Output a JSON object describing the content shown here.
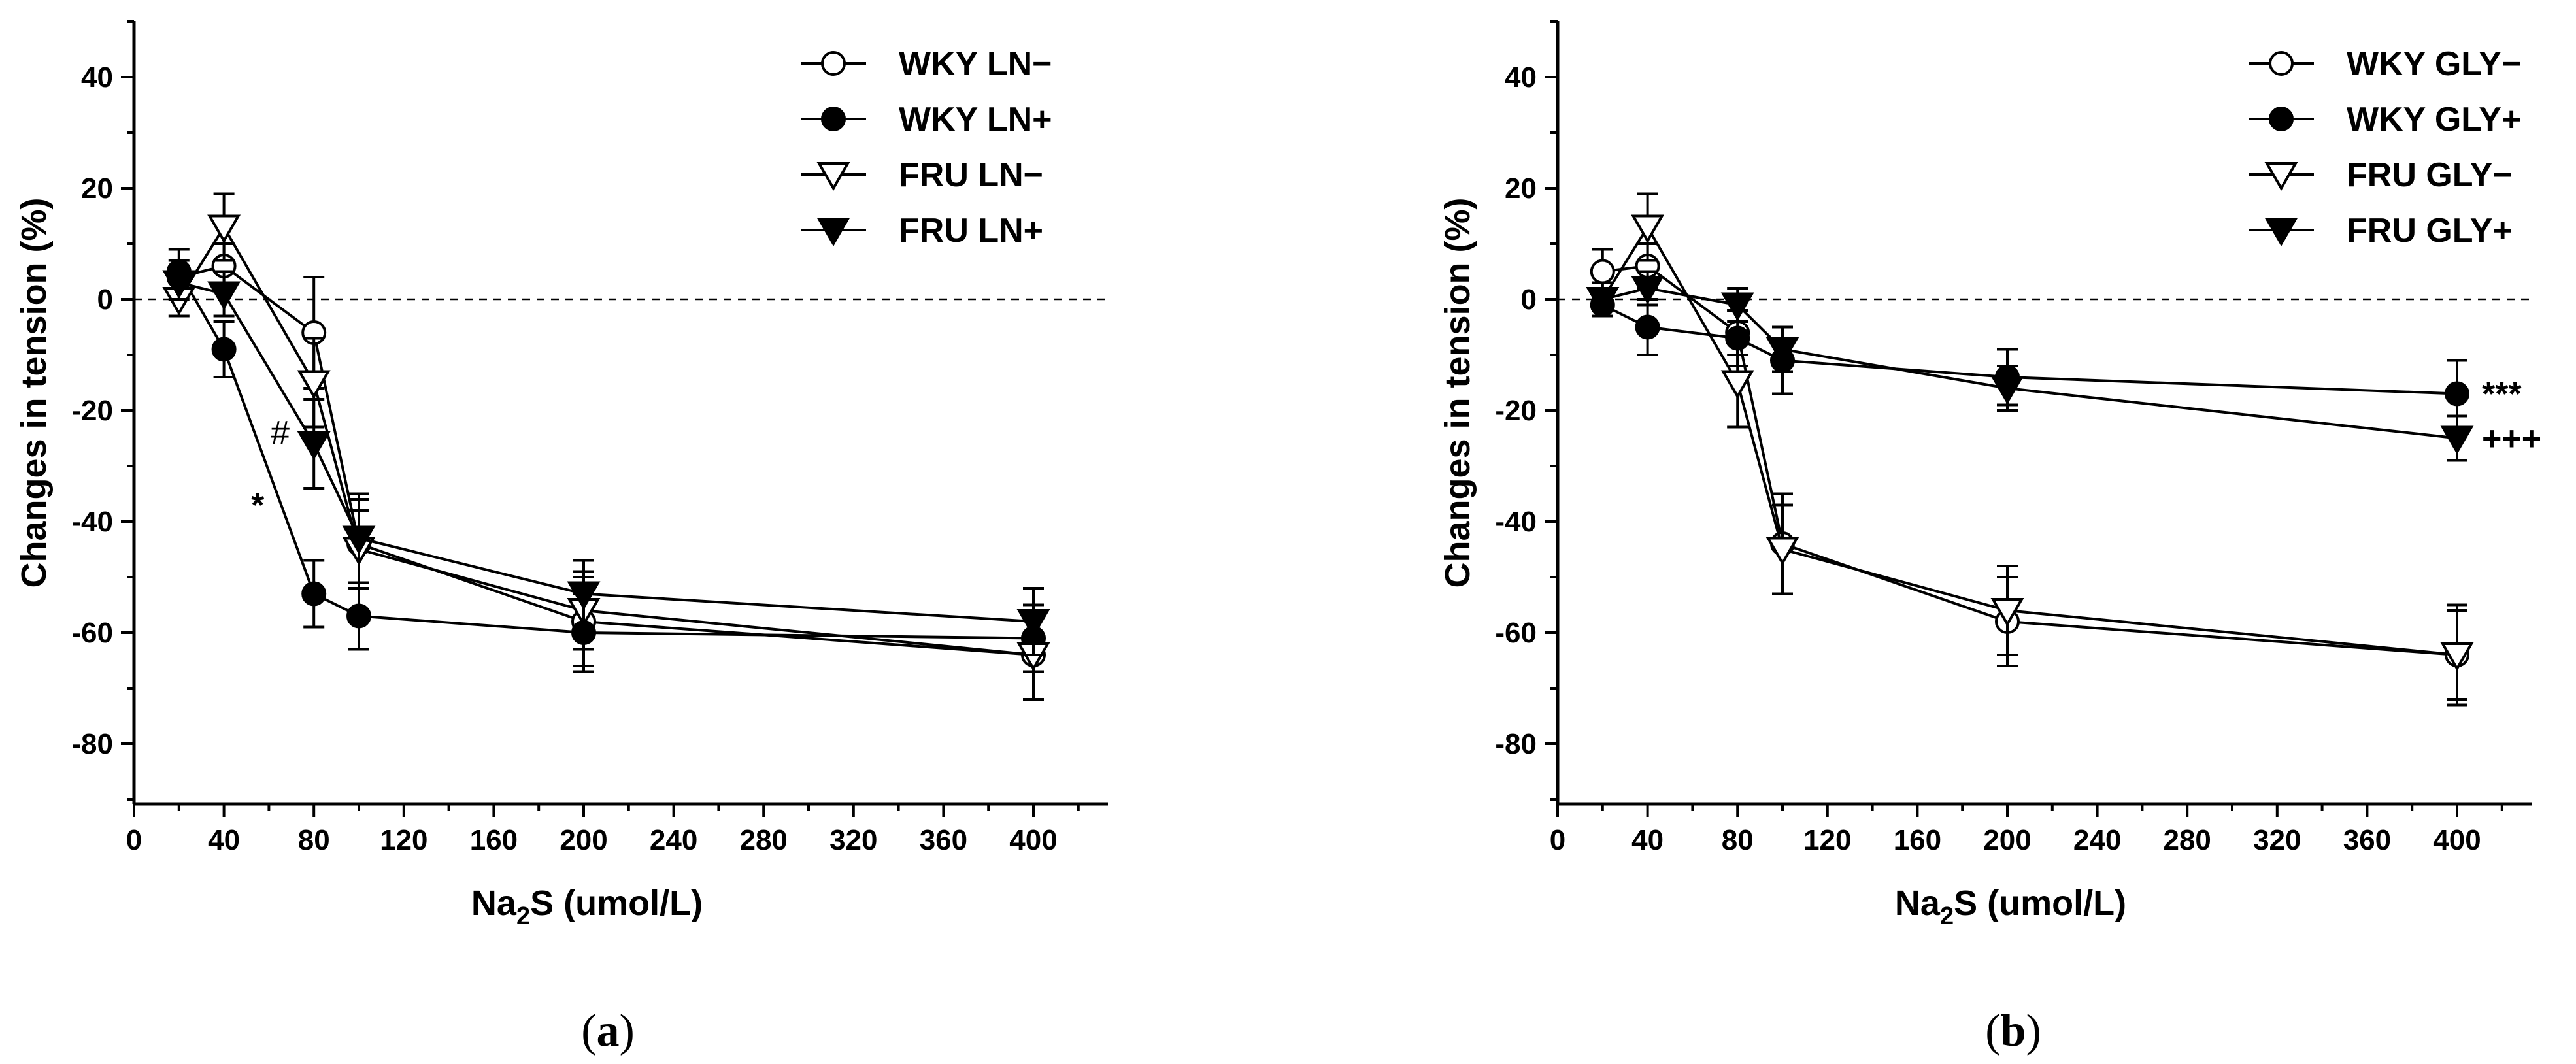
{
  "chart_data": [
    {
      "type": "line",
      "panel_label": "a",
      "xlabel": "Na2S (umol/L)",
      "xlabel_main": "Na",
      "xlabel_sub": "2",
      "xlabel_rest": "S (umol/L)",
      "ylabel": "Changes in tension (%)",
      "xlim": [
        0,
        430
      ],
      "ylim": [
        -90,
        50
      ],
      "xticks": [
        0,
        40,
        80,
        120,
        160,
        200,
        240,
        280,
        320,
        360,
        400
      ],
      "yticks": [
        40,
        20,
        0,
        -20,
        -40,
        -60,
        -80
      ],
      "reference_line_y": 0,
      "legend_position": "top-right",
      "series": [
        {
          "name": "WKY LN−",
          "marker": "circle-open",
          "x": [
            20,
            40,
            80,
            100,
            200,
            400
          ],
          "y": [
            4,
            6,
            -6,
            -44,
            -58,
            -64
          ],
          "err": [
            3,
            4,
            10,
            8,
            8,
            8
          ]
        },
        {
          "name": "WKY LN+",
          "marker": "circle-filled",
          "x": [
            20,
            40,
            80,
            100,
            200,
            400
          ],
          "y": [
            5,
            -9,
            -53,
            -57,
            -60,
            -61
          ],
          "err": [
            4,
            5,
            6,
            6,
            7,
            6
          ]
        },
        {
          "name": "FRU LN−",
          "marker": "triangle-open",
          "x": [
            20,
            40,
            80,
            100,
            200,
            400
          ],
          "y": [
            0,
            13,
            -15,
            -45,
            -56,
            -64
          ],
          "err": [
            3,
            6,
            8,
            7,
            7,
            8
          ]
        },
        {
          "name": "FRU LN+",
          "marker": "triangle-filled",
          "x": [
            20,
            40,
            80,
            100,
            200,
            400
          ],
          "y": [
            3,
            1,
            -26,
            -43,
            -53,
            -58
          ],
          "err": [
            3,
            4,
            8,
            8,
            6,
            6
          ]
        }
      ],
      "annotations": [
        {
          "text": "#",
          "x": 65,
          "y": -24
        },
        {
          "text": "*",
          "x": 55,
          "y": -37
        }
      ]
    },
    {
      "type": "line",
      "panel_label": "b",
      "xlabel": "Na2S (umol/L)",
      "xlabel_main": "Na",
      "xlabel_sub": "2",
      "xlabel_rest": "S (umol/L)",
      "ylabel": "Changes in tension (%)",
      "xlim": [
        0,
        430
      ],
      "ylim": [
        -90,
        50
      ],
      "xticks": [
        0,
        40,
        80,
        120,
        160,
        200,
        240,
        280,
        320,
        360,
        400
      ],
      "yticks": [
        40,
        20,
        0,
        -20,
        -40,
        -60,
        -80
      ],
      "reference_line_y": 0,
      "legend_position": "top-right",
      "series": [
        {
          "name": "WKY GLY−",
          "marker": "circle-open",
          "x": [
            20,
            40,
            80,
            100,
            200,
            400
          ],
          "y": [
            5,
            6,
            -6,
            -44,
            -58,
            -64
          ],
          "err": [
            4,
            4,
            4,
            9,
            8,
            9
          ]
        },
        {
          "name": "WKY GLY+",
          "marker": "circle-filled",
          "x": [
            20,
            40,
            80,
            100,
            200,
            400
          ],
          "y": [
            -1,
            -5,
            -7,
            -11,
            -14,
            -17
          ],
          "err": [
            2,
            5,
            5,
            6,
            5,
            6
          ]
        },
        {
          "name": "FRU GLY−",
          "marker": "triangle-open",
          "x": [
            20,
            40,
            80,
            100,
            200,
            400
          ],
          "y": [
            0,
            13,
            -15,
            -45,
            -56,
            -64
          ],
          "err": [
            3,
            6,
            8,
            8,
            8,
            8
          ]
        },
        {
          "name": "FRU GLY+",
          "marker": "triangle-filled",
          "x": [
            20,
            40,
            80,
            100,
            200,
            400
          ],
          "y": [
            0,
            2,
            -1,
            -9,
            -16,
            -25
          ],
          "err": [
            2,
            3,
            3,
            4,
            4,
            4
          ]
        }
      ],
      "annotations": [
        {
          "text": "***",
          "series": 1
        },
        {
          "text": "+++",
          "series": 3
        }
      ]
    }
  ]
}
